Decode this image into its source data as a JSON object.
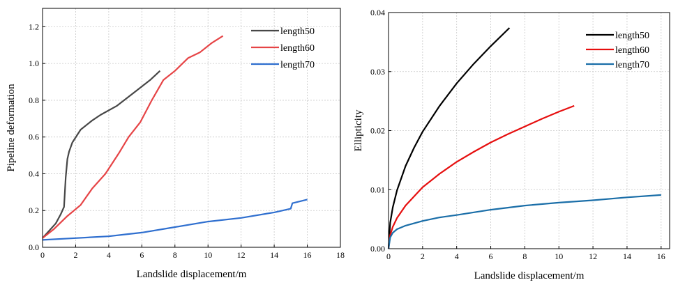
{
  "chart_data": [
    {
      "type": "line",
      "title": "",
      "xlabel": "Landslide displacement/m",
      "ylabel": "Pipeline deformation",
      "xlim": [
        0,
        18
      ],
      "ylim": [
        0,
        1.3
      ],
      "grid": true,
      "legend_position": "top-right",
      "xticks": [
        "0",
        "2",
        "4",
        "6",
        "8",
        "10",
        "12",
        "14",
        "16",
        "18"
      ],
      "yticks": [
        "0.0",
        "0.2",
        "0.4",
        "0.6",
        "0.8",
        "1.0",
        "1.2"
      ],
      "series": [
        {
          "name": "length50",
          "color": "#474747",
          "x": [
            0,
            0.4,
            0.8,
            1.1,
            1.3,
            1.4,
            1.5,
            1.6,
            1.8,
            2.3,
            3.0,
            3.5,
            4.5,
            5.5,
            6.5,
            7.1
          ],
          "y": [
            0.05,
            0.09,
            0.13,
            0.18,
            0.22,
            0.38,
            0.48,
            0.52,
            0.57,
            0.64,
            0.69,
            0.72,
            0.77,
            0.84,
            0.91,
            0.96
          ]
        },
        {
          "name": "length60",
          "color": "#e64446",
          "x": [
            0,
            0.7,
            1.5,
            2.3,
            3.0,
            3.8,
            4.6,
            5.2,
            5.9,
            6.6,
            7.3,
            8.0,
            8.8,
            9.5,
            10.2,
            10.9
          ],
          "y": [
            0.05,
            0.1,
            0.17,
            0.23,
            0.32,
            0.4,
            0.51,
            0.6,
            0.68,
            0.8,
            0.91,
            0.96,
            1.03,
            1.06,
            1.11,
            1.15
          ]
        },
        {
          "name": "length70",
          "color": "#2f6fcf",
          "x": [
            0,
            2,
            4,
            5,
            6,
            8,
            10,
            12,
            14,
            15,
            15.1,
            16
          ],
          "y": [
            0.04,
            0.05,
            0.06,
            0.07,
            0.08,
            0.11,
            0.14,
            0.16,
            0.19,
            0.21,
            0.24,
            0.26
          ]
        }
      ]
    },
    {
      "type": "line",
      "title": "",
      "xlabel": "Landslide displacement/m",
      "ylabel": "Ellipticity",
      "xlim": [
        0,
        16.5
      ],
      "ylim": [
        0,
        0.04
      ],
      "grid": true,
      "legend_position": "top-right",
      "xticks": [
        "0",
        "2",
        "4",
        "6",
        "8",
        "10",
        "12",
        "14",
        "16"
      ],
      "yticks": [
        "0.00",
        "0.01",
        "0.02",
        "0.03",
        "0.04"
      ],
      "series": [
        {
          "name": "length50",
          "color": "#000000",
          "x": [
            0,
            0.1,
            0.25,
            0.5,
            1,
            1.5,
            2,
            3,
            4,
            5,
            6,
            7.1
          ],
          "y": [
            0,
            0.0044,
            0.007,
            0.0099,
            0.014,
            0.0171,
            0.0198,
            0.0242,
            0.028,
            0.0313,
            0.0343,
            0.0374
          ]
        },
        {
          "name": "length60",
          "color": "#e60e0e",
          "x": [
            0,
            0.1,
            0.25,
            0.5,
            1,
            2,
            3,
            4,
            5,
            6,
            7,
            8,
            9,
            10,
            10.9
          ],
          "y": [
            0,
            0.0023,
            0.0037,
            0.0052,
            0.0073,
            0.0104,
            0.0127,
            0.0147,
            0.0164,
            0.018,
            0.0194,
            0.0207,
            0.022,
            0.0232,
            0.0242
          ]
        },
        {
          "name": "length70",
          "color": "#1a6ea8",
          "x": [
            0,
            0.1,
            0.25,
            0.5,
            1,
            2,
            3,
            4,
            6,
            8,
            10,
            12,
            14,
            16
          ],
          "y": [
            0,
            0.0019,
            0.0027,
            0.0033,
            0.0039,
            0.0047,
            0.0053,
            0.0057,
            0.0066,
            0.0073,
            0.0078,
            0.0082,
            0.0087,
            0.0091
          ]
        }
      ]
    }
  ]
}
